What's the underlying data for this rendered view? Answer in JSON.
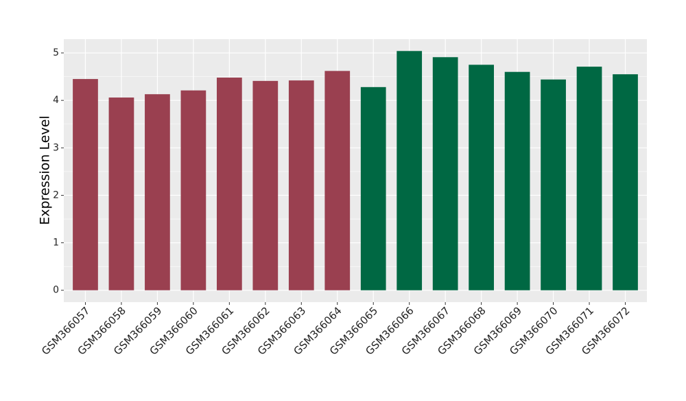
{
  "chart_data": {
    "type": "bar",
    "y_label": "Expression Level",
    "categories": [
      "GSM366057",
      "GSM366058",
      "GSM366059",
      "GSM366060",
      "GSM366061",
      "GSM366062",
      "GSM366063",
      "GSM366064",
      "GSM366065",
      "GSM366066",
      "GSM366067",
      "GSM366068",
      "GSM366069",
      "GSM366070",
      "GSM366071",
      "GSM366072"
    ],
    "values": [
      4.45,
      4.06,
      4.13,
      4.21,
      4.48,
      4.41,
      4.42,
      4.62,
      4.28,
      5.04,
      4.91,
      4.75,
      4.6,
      4.44,
      4.71,
      4.55
    ],
    "colors": [
      "#9a4050",
      "#9a4050",
      "#9a4050",
      "#9a4050",
      "#9a4050",
      "#9a4050",
      "#9a4050",
      "#9a4050",
      "#006843",
      "#006843",
      "#006843",
      "#006843",
      "#006843",
      "#006843",
      "#006843",
      "#006843"
    ],
    "ylim": [
      -0.25,
      5.29
    ],
    "yticks": [
      0,
      1,
      2,
      3,
      4,
      5
    ],
    "grid": true
  }
}
